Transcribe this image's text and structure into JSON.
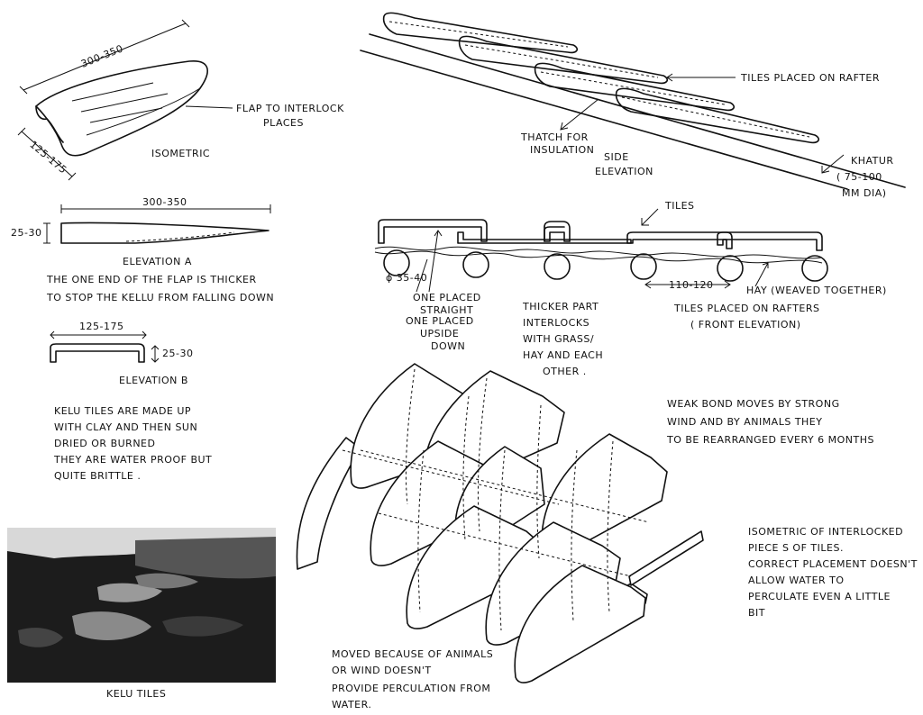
{
  "labels": {
    "iso_dim_length": "300-350",
    "iso_dim_width": "125-175",
    "flap_label_line1": "FLAP TO INTERLOCK",
    "flap_label_line2": "PLACES",
    "isometric": "ISOMETRIC",
    "elevA_dim": "300-350",
    "elevA_height": "25-30",
    "elevation_a": "ELEVATION A",
    "elevA_note_line1": "THE  ONE  END  OF  THE  FLAP  IS  THICKER",
    "elevA_note_line2": "TO  STOP  THE  KELLU  FROM  FALLING  DOWN",
    "elevB_dim": "125-175",
    "elevB_height": "25-30",
    "elevation_b": "ELEVATION B",
    "kellu_note_line1": "KELU  TILES  ARE  MADE  UP",
    "kellu_note_line2": "WITH  CLAY  AND  THEN  SUN",
    "kellu_note_line3": "DRIED  OR  BURNED",
    "kellu_note_line4": "THEY  ARE  WATER PROOF  BUT",
    "kellu_note_line5": "QUITE  BRITTLE .",
    "photo_caption": "KELU TILES",
    "tiles_on_rafter": "TILES PLACED ON RAFTER",
    "thatch_line1": "THATCH  FOR",
    "thatch_line2": "INSULATION",
    "side_line1": "SIDE",
    "side_line2": "ELEVATION",
    "khatur_line1": "KHATUR",
    "khatur_line2": "( 75-100",
    "khatur_line3": "MM  DIA)",
    "tiles": "TILES",
    "phi": "ϕ 35-40",
    "spacing": "110-120",
    "hay": "HAY (WEAVED TOGETHER)",
    "front_line1": "TILES  PLACED  ON  RAFTERS",
    "front_line2": "( FRONT  ELEVATION)",
    "placed_line1": "ONE  PLACED",
    "placed_line2": "STRAIGHT",
    "placed_line3": "ONE  PLACED",
    "placed_line4": "UPSIDE",
    "placed_line5": "DOWN",
    "thicker_line1": "THICKER  PART",
    "thicker_line2": "INTERLOCKS",
    "thicker_line3": "WITH  GRASS/",
    "thicker_line4": "HAY  AND  EACH",
    "thicker_line5": "OTHER .",
    "weak_line1": "WEAK  BOND  MOVES  BY  STRONG",
    "weak_line2": "WIND  AND  BY  ANIMALS  THEY",
    "weak_line3": "TO  BE  REARRANGED  EVERY  6 MONTHS",
    "iso_line1": "ISOMETRIC  OF  INTERLOCKED",
    "iso_line2": "PIECE S  OF  TILES.",
    "iso_line3": "CORRECT  PLACEMENT  DOESN'T",
    "iso_line4": "ALLOW  WATER  TO",
    "iso_line5": "PERCULATE  EVEN  A  LITTLE",
    "iso_line6": "BIT",
    "moved_line1": "MOVED  BECAUSE  OF  ANIMALS",
    "moved_line2": "OR  WIND  DOESN'T",
    "moved_line3": "PROVIDE  PERCULATION  FROM",
    "moved_line4": "WATER."
  }
}
